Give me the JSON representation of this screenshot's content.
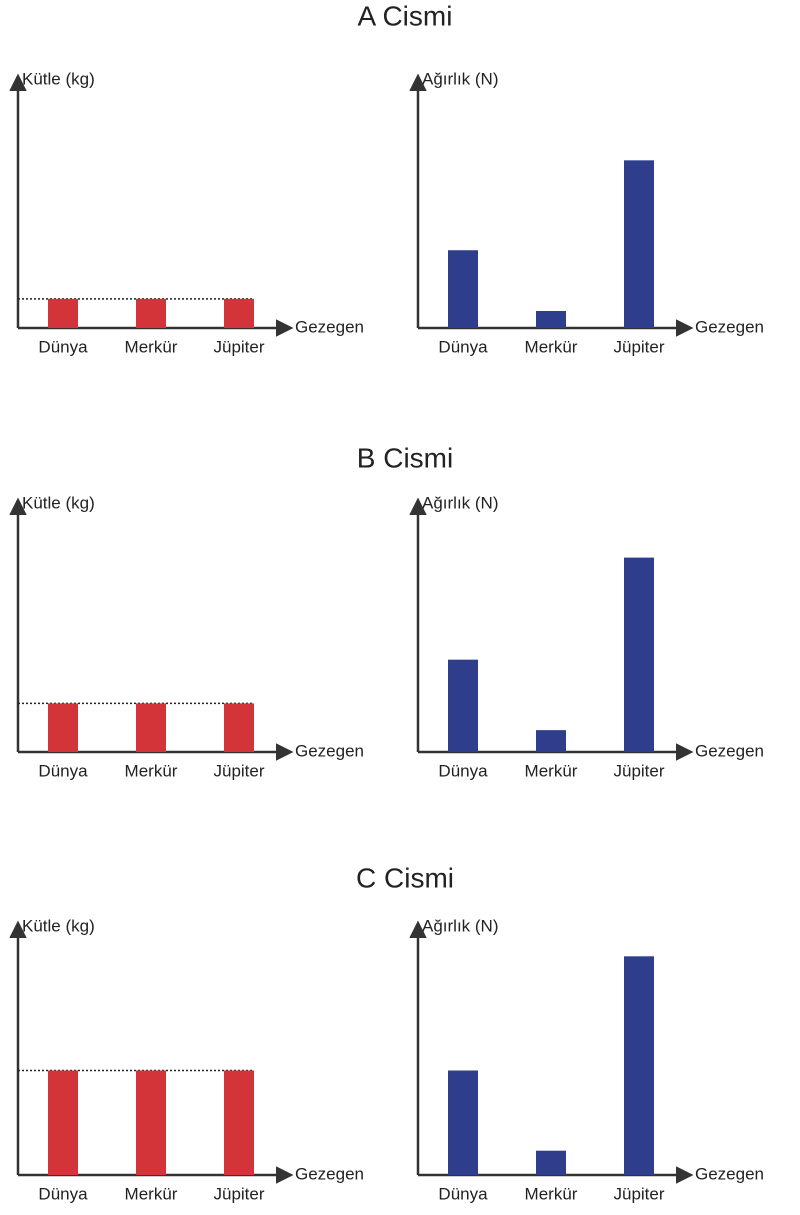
{
  "chart_data": [
    {
      "type": "bar",
      "title": "A Cismi",
      "ylabel": "Kütle (kg)",
      "xlabel": "Gezegen",
      "categories": [
        "Dünya",
        "Merkür",
        "Jüpiter"
      ],
      "values": [
        12,
        12,
        12
      ],
      "color": "#d2343a",
      "ylim": [
        0,
        100
      ],
      "reference_line": true
    },
    {
      "type": "bar",
      "ylabel": "Ağırlık (N)",
      "xlabel": "Gezegen",
      "categories": [
        "Dünya",
        "Merkür",
        "Jüpiter"
      ],
      "values": [
        32,
        7,
        69
      ],
      "color": "#2f3e8c",
      "ylim": [
        0,
        100
      ],
      "reference_line": false
    },
    {
      "type": "bar",
      "title": "B Cismi",
      "ylabel": "Kütle (kg)",
      "xlabel": "Gezegen",
      "categories": [
        "Dünya",
        "Merkür",
        "Jüpiter"
      ],
      "values": [
        20,
        20,
        20
      ],
      "color": "#d2343a",
      "ylim": [
        0,
        100
      ],
      "reference_line": true
    },
    {
      "type": "bar",
      "ylabel": "Ağırlık (N)",
      "xlabel": "Gezegen",
      "categories": [
        "Dünya",
        "Merkür",
        "Jüpiter"
      ],
      "values": [
        38,
        9,
        80
      ],
      "color": "#2f3e8c",
      "ylim": [
        0,
        100
      ],
      "reference_line": false
    },
    {
      "type": "bar",
      "title": "C Cismi",
      "ylabel": "Kütle (kg)",
      "xlabel": "Gezegen",
      "categories": [
        "Dünya",
        "Merkür",
        "Jüpiter"
      ],
      "values": [
        43,
        43,
        43
      ],
      "color": "#d2343a",
      "ylim": [
        0,
        100
      ],
      "reference_line": true
    },
    {
      "type": "bar",
      "ylabel": "Ağırlık (N)",
      "xlabel": "Gezegen",
      "categories": [
        "Dünya",
        "Merkür",
        "Jüpiter"
      ],
      "values": [
        43,
        10,
        90
      ],
      "color": "#2f3e8c",
      "ylim": [
        0,
        100
      ],
      "reference_line": false
    }
  ]
}
